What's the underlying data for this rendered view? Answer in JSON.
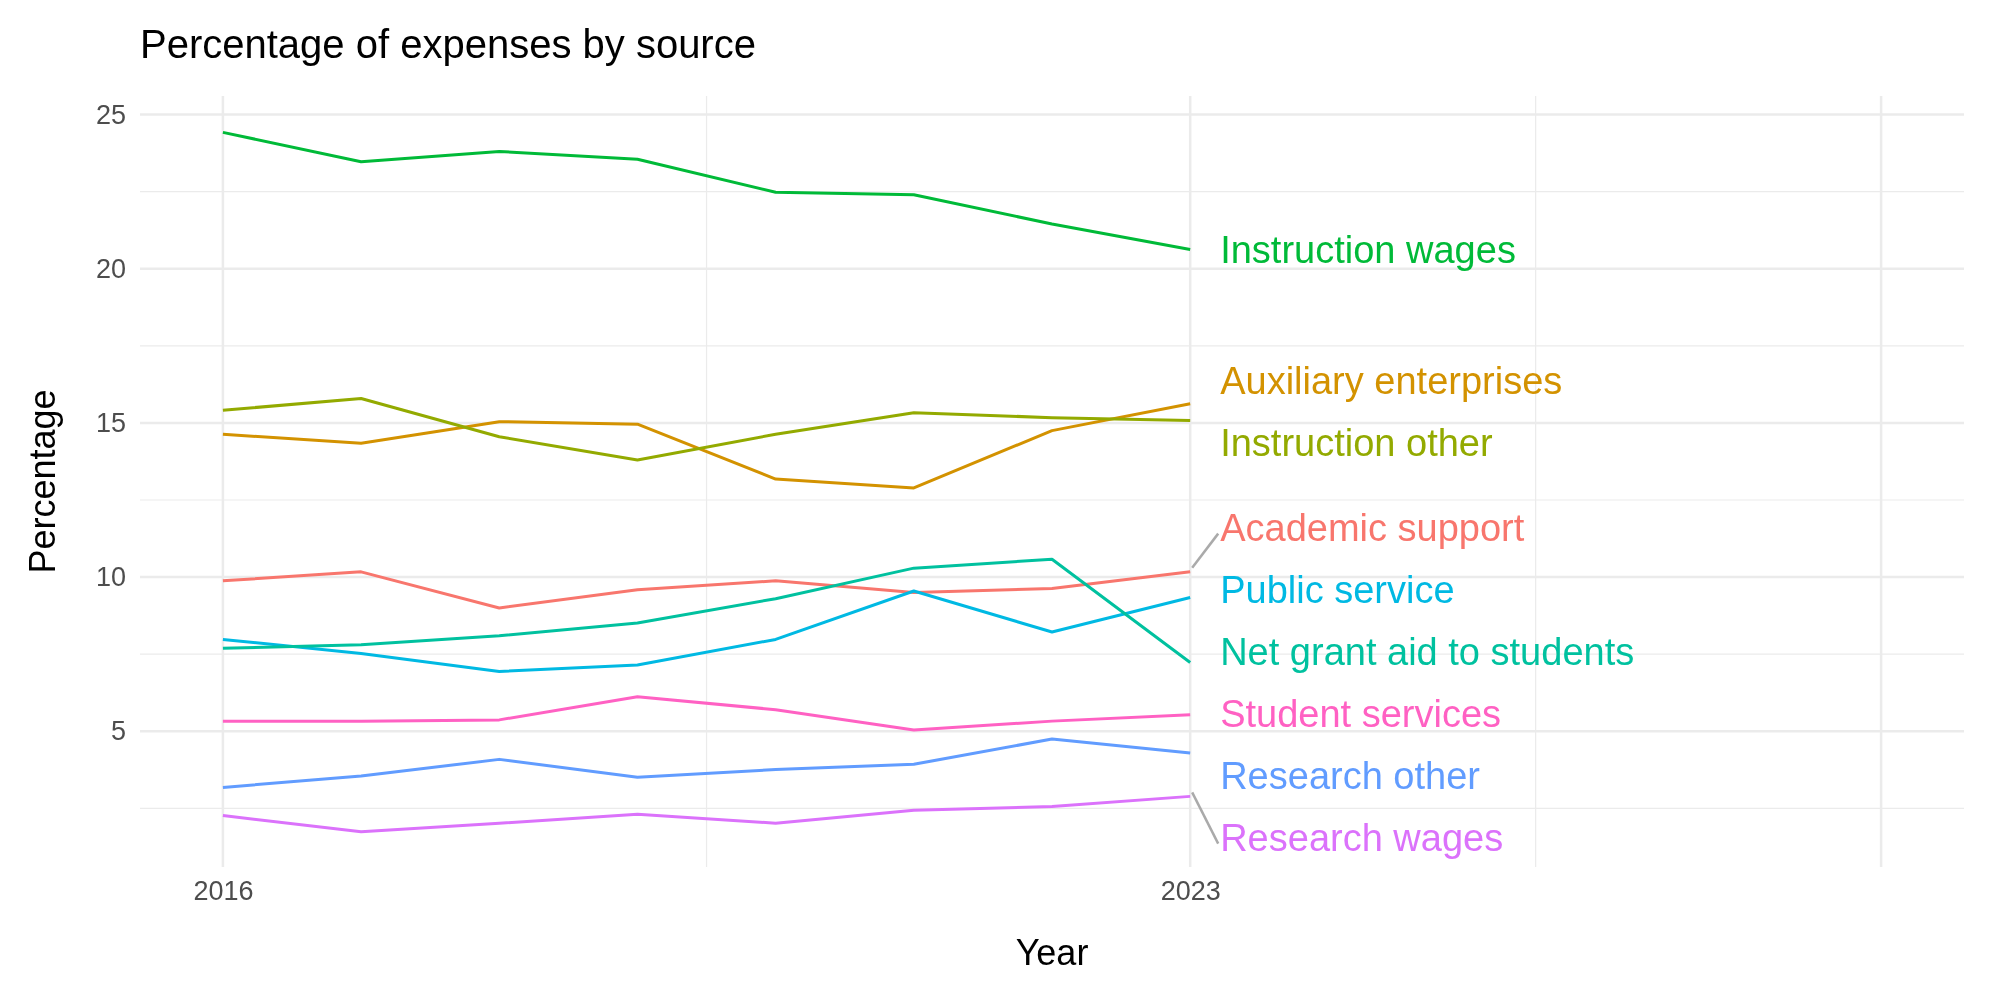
{
  "chart_data": {
    "type": "line",
    "title": "Percentage of expenses by source",
    "xlabel": "Year",
    "ylabel": "Percentage",
    "x": [
      2016,
      2017,
      2018,
      2019,
      2020,
      2021,
      2022,
      2023
    ],
    "xlim": [
      2015.4,
      2028.6
    ],
    "xticks": [
      2016,
      2023,
      {
        "value": 2028,
        "label": null
      }
    ],
    "ylim": [
      0.6,
      25.6
    ],
    "yticks": [
      5,
      10,
      15,
      20,
      25
    ],
    "grid": true,
    "legend": false,
    "line_style": "solid",
    "marker": "none",
    "series": [
      {
        "name": "Instruction wages",
        "color": "#00ba38",
        "values": [
          24.42,
          23.47,
          23.8,
          23.55,
          22.48,
          22.4,
          21.45,
          20.62
        ]
      },
      {
        "name": "Auxiliary enterprises",
        "color": "#d39200",
        "values": [
          14.63,
          14.34,
          15.04,
          14.96,
          13.18,
          12.89,
          14.75,
          15.62
        ]
      },
      {
        "name": "Instruction other",
        "color": "#93aa00",
        "values": [
          15.41,
          15.79,
          14.55,
          13.8,
          14.63,
          15.33,
          15.17,
          15.08
        ]
      },
      {
        "name": "Academic support",
        "color": "#f8766d",
        "values": [
          9.88,
          10.17,
          9.0,
          9.59,
          9.88,
          9.5,
          9.63,
          10.17
        ]
      },
      {
        "name": "Public service",
        "color": "#00b9e3",
        "values": [
          7.98,
          7.52,
          6.94,
          7.15,
          7.98,
          9.55,
          8.22,
          9.34
        ]
      },
      {
        "name": "Net grant aid to students",
        "color": "#00c19f",
        "values": [
          7.69,
          7.81,
          8.1,
          8.51,
          9.3,
          10.29,
          10.58,
          7.23
        ]
      },
      {
        "name": "Student services",
        "color": "#ff61c3",
        "values": [
          5.33,
          5.33,
          5.37,
          6.12,
          5.7,
          5.04,
          5.33,
          5.54
        ]
      },
      {
        "name": "Research other",
        "color": "#619cff",
        "values": [
          3.18,
          3.55,
          4.09,
          3.51,
          3.76,
          3.93,
          4.75,
          4.3
        ]
      },
      {
        "name": "Research wages",
        "color": "#db72fb",
        "values": [
          2.27,
          1.74,
          2.02,
          2.31,
          2.02,
          2.44,
          2.56,
          2.89
        ]
      }
    ]
  }
}
